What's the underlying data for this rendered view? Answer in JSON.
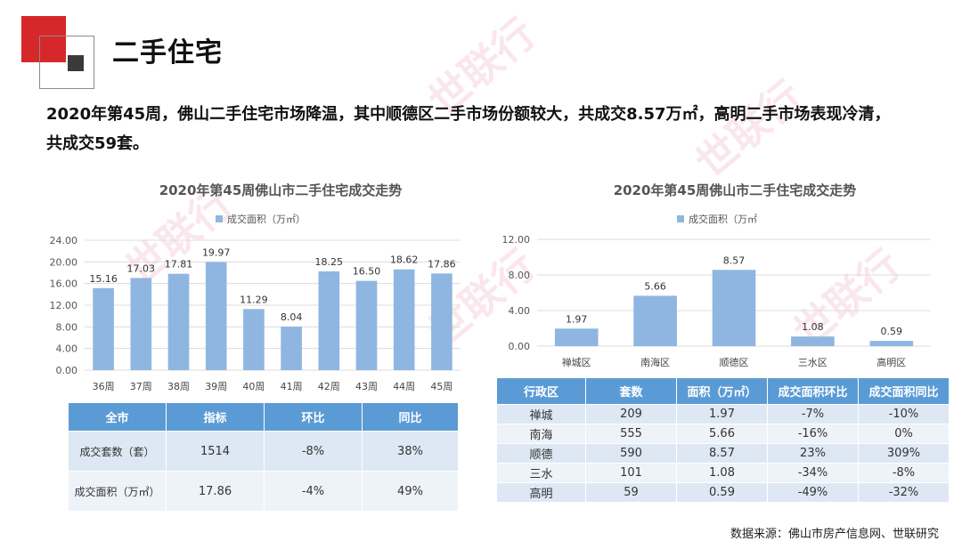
{
  "page": {
    "title": "二手住宅",
    "summary_line1": "2020年第45周，佛山二手住宅市场降温，其中顺德区二手市场份额较大，共成交8.57万㎡，高明二手市场表现冷清，",
    "summary_line2": "共成交59套。",
    "source": "数据来源：佛山市房产信息网、世联研究",
    "watermark_text": "世联行"
  },
  "chart_data": [
    {
      "type": "bar",
      "title": "2020年第45周佛山市二手住宅成交走势",
      "legend": "成交面积（万㎡）",
      "categories": [
        "36周",
        "37周",
        "38周",
        "39周",
        "40周",
        "41周",
        "42周",
        "43周",
        "44周",
        "45周"
      ],
      "values": [
        15.16,
        17.03,
        17.81,
        19.97,
        11.29,
        8.04,
        18.25,
        16.5,
        18.62,
        17.86
      ],
      "value_labels": [
        "15.16",
        "17.03",
        "17.81",
        "19.97",
        "11.29",
        "8.04",
        "18.25",
        "16.50",
        "18.62",
        "17.86"
      ],
      "ylim": [
        0,
        24
      ],
      "yticks": [
        0,
        4,
        8,
        12,
        16,
        20,
        24
      ],
      "ytick_labels": [
        "0.00",
        "4.00",
        "8.00",
        "12.00",
        "16.00",
        "20.00",
        "24.00"
      ],
      "grid": true,
      "legend_position": "top",
      "bar_color": "#8fb6e0"
    },
    {
      "type": "bar",
      "title": "2020年第45周佛山市二手住宅成交走势",
      "legend": "成交面积（万㎡",
      "categories": [
        "禅城区",
        "南海区",
        "顺德区",
        "三水区",
        "高明区"
      ],
      "values": [
        1.97,
        5.66,
        8.57,
        1.08,
        0.59
      ],
      "value_labels": [
        "1.97",
        "5.66",
        "8.57",
        "1.08",
        "0.59"
      ],
      "ylim": [
        0,
        12
      ],
      "yticks": [
        0,
        4,
        8,
        12
      ],
      "ytick_labels": [
        "0.00",
        "4.00",
        "8.00",
        "12.00"
      ],
      "grid": true,
      "legend_position": "top",
      "bar_color": "#8fb6e0"
    }
  ],
  "table_left": {
    "headers": [
      "全市",
      "指标",
      "环比",
      "同比"
    ],
    "rows": [
      [
        "成交套数（套）",
        "1514",
        "-8%",
        "38%"
      ],
      [
        "成交面积（万㎡）",
        "17.86",
        "-4%",
        "49%"
      ]
    ]
  },
  "table_right": {
    "headers": [
      "行政区",
      "套数",
      "面积（万㎡）",
      "成交面积环比",
      "成交面积同比"
    ],
    "rows": [
      [
        "禅城",
        "209",
        "1.97",
        "-7%",
        "-10%"
      ],
      [
        "南海",
        "555",
        "5.66",
        "-16%",
        "0%"
      ],
      [
        "顺德",
        "590",
        "8.57",
        "23%",
        "309%"
      ],
      [
        "三水",
        "101",
        "1.08",
        "-34%",
        "-8%"
      ],
      [
        "高明",
        "59",
        "0.59",
        "-49%",
        "-32%"
      ]
    ]
  }
}
